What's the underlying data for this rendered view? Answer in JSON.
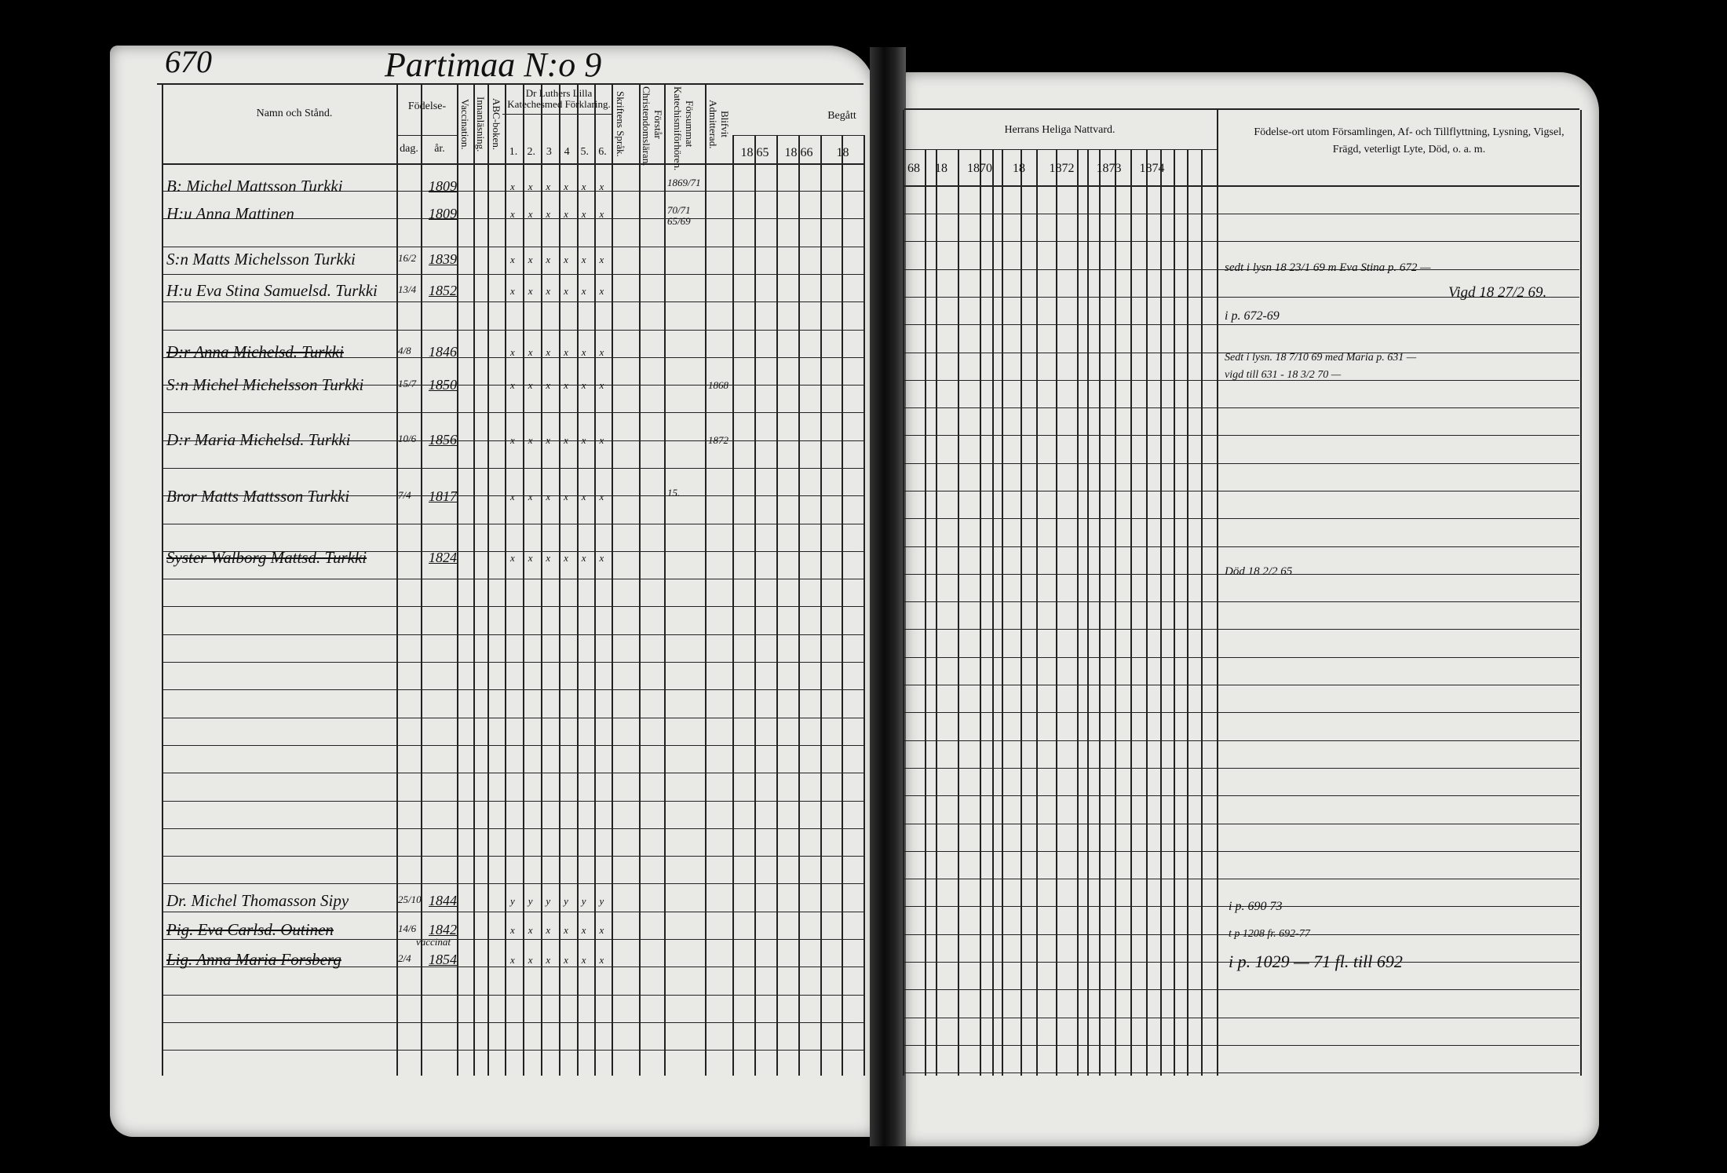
{
  "page_number": "670",
  "title": "Partimaa N:o 9",
  "left_headers": {
    "name": "Namn och Stånd.",
    "birth": "Födelse-",
    "day": "dag.",
    "year": "år.",
    "vaccination": "Vaccination.",
    "reading": "Innanläsning.",
    "abc": "ABC-boken.",
    "catechism": "Dr Luthers Lilla Katechesmed Förklaring.",
    "catechism_cols": [
      "1.",
      "2.",
      "3",
      "4",
      "5.",
      "6."
    ],
    "scripture": "Skriftens Språk.",
    "understanding": "Förstår Christendomsläran.",
    "neglected": "Försummat Katechismiförhören.",
    "admitted": "Blifvit Admitterad.",
    "communion_partial": "Begått",
    "years": [
      "18 65",
      "18 66",
      "18"
    ]
  },
  "right_headers": {
    "communion": "Herrans Heliga Nattvard.",
    "years": [
      "68",
      "18",
      "1870",
      "18",
      "1872",
      "1873",
      "1874"
    ],
    "remarks": "Födelse-ort utom Församlingen, Af- och Tillflyttning, Lysning, Vigsel, Frägd, veterligt Lyte, Död, o. a. m."
  },
  "entries": [
    {
      "name": "B: Michel Mattsson Turkki",
      "day": "",
      "year": "1809",
      "marks": [
        "x",
        "x",
        "x",
        "x",
        "x",
        "x"
      ],
      "neglected": "1869/71",
      "struck": false
    },
    {
      "name": "H:u Anna Mattinen",
      "day": "",
      "year": "1809",
      "marks": [
        "x",
        "x",
        "x",
        "x",
        "x",
        "x"
      ],
      "neglected": "70/71 65/69",
      "struck": false
    },
    {
      "name": "S:n Matts Michelsson Turkki",
      "day": "16/2",
      "year": "1839",
      "marks": [
        "x",
        "x",
        "x",
        "x",
        "x",
        "x"
      ],
      "neglected": "",
      "struck": false
    },
    {
      "name": "H:u Eva Stina Samuelsd. Turkki",
      "day": "13/4",
      "year": "1852",
      "marks": [
        "x",
        "x",
        "x",
        "x",
        "x",
        "x"
      ],
      "neglected": "",
      "struck": false
    },
    {
      "name": "D:r Anna Michelsd. Turkki",
      "day": "4/8",
      "year": "1846",
      "marks": [
        "x",
        "x",
        "x",
        "x",
        "x",
        "x"
      ],
      "neglected": "",
      "struck": true
    },
    {
      "name": "S:n Michel Michelsson Turkki",
      "day": "15/7",
      "year": "1850",
      "marks": [
        "x",
        "x",
        "x",
        "x",
        "x",
        "x"
      ],
      "admitted": "1868",
      "neglected": "",
      "struck": false
    },
    {
      "name": "D:r Maria Michelsd. Turkki",
      "day": "10/6",
      "year": "1856",
      "marks": [
        "x",
        "x",
        "x",
        "x",
        "x",
        "x"
      ],
      "admitted": "1872",
      "neglected": "",
      "struck": false
    },
    {
      "name": "Bror Matts Mattsson Turkki",
      "day": "7/4",
      "year": "1817",
      "marks": [
        "x",
        "x",
        "x",
        "x",
        "x",
        "x"
      ],
      "neglected": "15.",
      "struck": false
    },
    {
      "name": "Syster Walborg Mattsd. Turkki",
      "day": "",
      "year": "1824",
      "marks": [
        "x",
        "x",
        "x",
        "x",
        "x",
        "x"
      ],
      "neglected": "",
      "struck": true
    },
    {
      "name": "Dr. Michel Thomasson Sipy",
      "day": "25/10",
      "year": "1844",
      "marks": [
        "y",
        "y",
        "y",
        "y",
        "y",
        "y"
      ],
      "neglected": "",
      "struck": false
    },
    {
      "name": "Pig. Eva Carlsd. Outinen",
      "day": "14/6",
      "year": "1842",
      "note": "vaccinat",
      "marks": [
        "x",
        "x",
        "x",
        "x",
        "x",
        "x"
      ],
      "neglected": "",
      "struck": true
    },
    {
      "name": "Lig. Anna Maria Forsberg",
      "day": "2/4",
      "year": "1854",
      "marks": [
        "x",
        "x",
        "x",
        "x",
        "x",
        "x"
      ],
      "neglected": "",
      "struck": true
    }
  ],
  "remarks": [
    "sedt i lysn 18 23/1 69 m Eva Stina p. 672 —",
    "Vigd 18 27/2 69.",
    "i p. 672-69",
    "Sedt i lysn. 18 7/10 69 med Maria p. 631 —",
    "vigd till 631 - 18 3/2 70 —",
    "Död 18 2/2 65",
    "i p. 690 73",
    "t p 1208 fr. 692-77",
    "i p. 1029 — 71 fl. till 692"
  ]
}
